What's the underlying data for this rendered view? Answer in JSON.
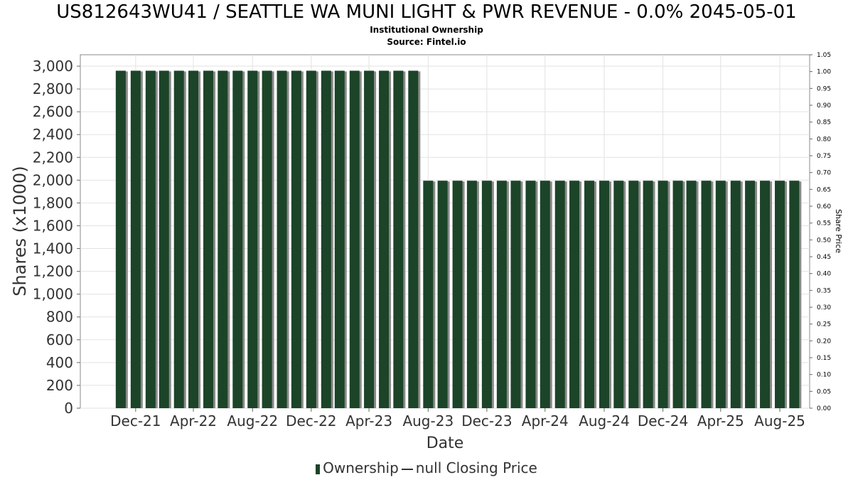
{
  "chart_data": {
    "type": "bar",
    "title": "US812643WU41 / SEATTLE WA MUNI LIGHT & PWR REVENUE - 0.0% 2045-05-01",
    "subtitle": "Institutional Ownership",
    "source": "Source: Fintel.io",
    "xlabel": "Date",
    "ylabel": "Shares (x1000)",
    "y2label": "Share Price",
    "ylim": [
      0,
      3100
    ],
    "y2lim": [
      0,
      1.05
    ],
    "yticks": [
      0,
      200,
      400,
      600,
      800,
      1000,
      1200,
      1400,
      1600,
      1800,
      2000,
      2200,
      2400,
      2600,
      2800,
      3000
    ],
    "y2ticks": [
      "0.00",
      "0.05",
      "0.10",
      "0.15",
      "0.20",
      "0.25",
      "0.30",
      "0.35",
      "0.40",
      "0.45",
      "0.50",
      "0.55",
      "0.60",
      "0.65",
      "0.70",
      "0.75",
      "0.80",
      "0.85",
      "0.90",
      "0.95",
      "1.00",
      "1.05"
    ],
    "xticks": [
      "Dec-21",
      "Apr-22",
      "Aug-22",
      "Dec-22",
      "Apr-23",
      "Aug-23",
      "Dec-23",
      "Apr-24",
      "Aug-24",
      "Dec-24",
      "Apr-25",
      "Aug-25"
    ],
    "x_range": [
      "2021-09-07",
      "2025-11-01"
    ],
    "grid": true,
    "bar_color": "#1c4428",
    "series": [
      {
        "name": "Ownership",
        "x": [
          "2021-11-30",
          "2021-12-31",
          "2022-01-31",
          "2022-02-28",
          "2022-03-31",
          "2022-04-30",
          "2022-05-31",
          "2022-06-30",
          "2022-07-31",
          "2022-08-31",
          "2022-09-30",
          "2022-10-31",
          "2022-11-30",
          "2022-12-31",
          "2023-01-31",
          "2023-02-28",
          "2023-03-31",
          "2023-04-30",
          "2023-05-31",
          "2023-06-30",
          "2023-07-31",
          "2023-08-31",
          "2023-09-30",
          "2023-10-31",
          "2023-11-30",
          "2023-12-31",
          "2024-01-31",
          "2024-02-29",
          "2024-03-31",
          "2024-04-30",
          "2024-05-31",
          "2024-06-30",
          "2024-07-31",
          "2024-08-31",
          "2024-09-30",
          "2024-10-31",
          "2024-11-30",
          "2024-12-31",
          "2025-01-31",
          "2025-02-28",
          "2025-03-31",
          "2025-04-30",
          "2025-05-31",
          "2025-06-30",
          "2025-07-31",
          "2025-08-31",
          "2025-09-30"
        ],
        "values": [
          2960,
          2960,
          2960,
          2960,
          2960,
          2960,
          2960,
          2960,
          2960,
          2960,
          2960,
          2960,
          2960,
          2960,
          2960,
          2960,
          2960,
          2960,
          2960,
          2960,
          2960,
          1995,
          1995,
          1995,
          1995,
          1995,
          1995,
          1995,
          1995,
          1995,
          1995,
          1995,
          1995,
          1995,
          1995,
          1995,
          1995,
          1995,
          1995,
          1995,
          1995,
          1995,
          1995,
          1995,
          1995,
          1995,
          1995
        ]
      },
      {
        "name": "null Closing Price",
        "values": []
      }
    ],
    "legend": {
      "position": "bottom",
      "ownership_label": "Ownership",
      "price_label": "null Closing Price"
    }
  }
}
